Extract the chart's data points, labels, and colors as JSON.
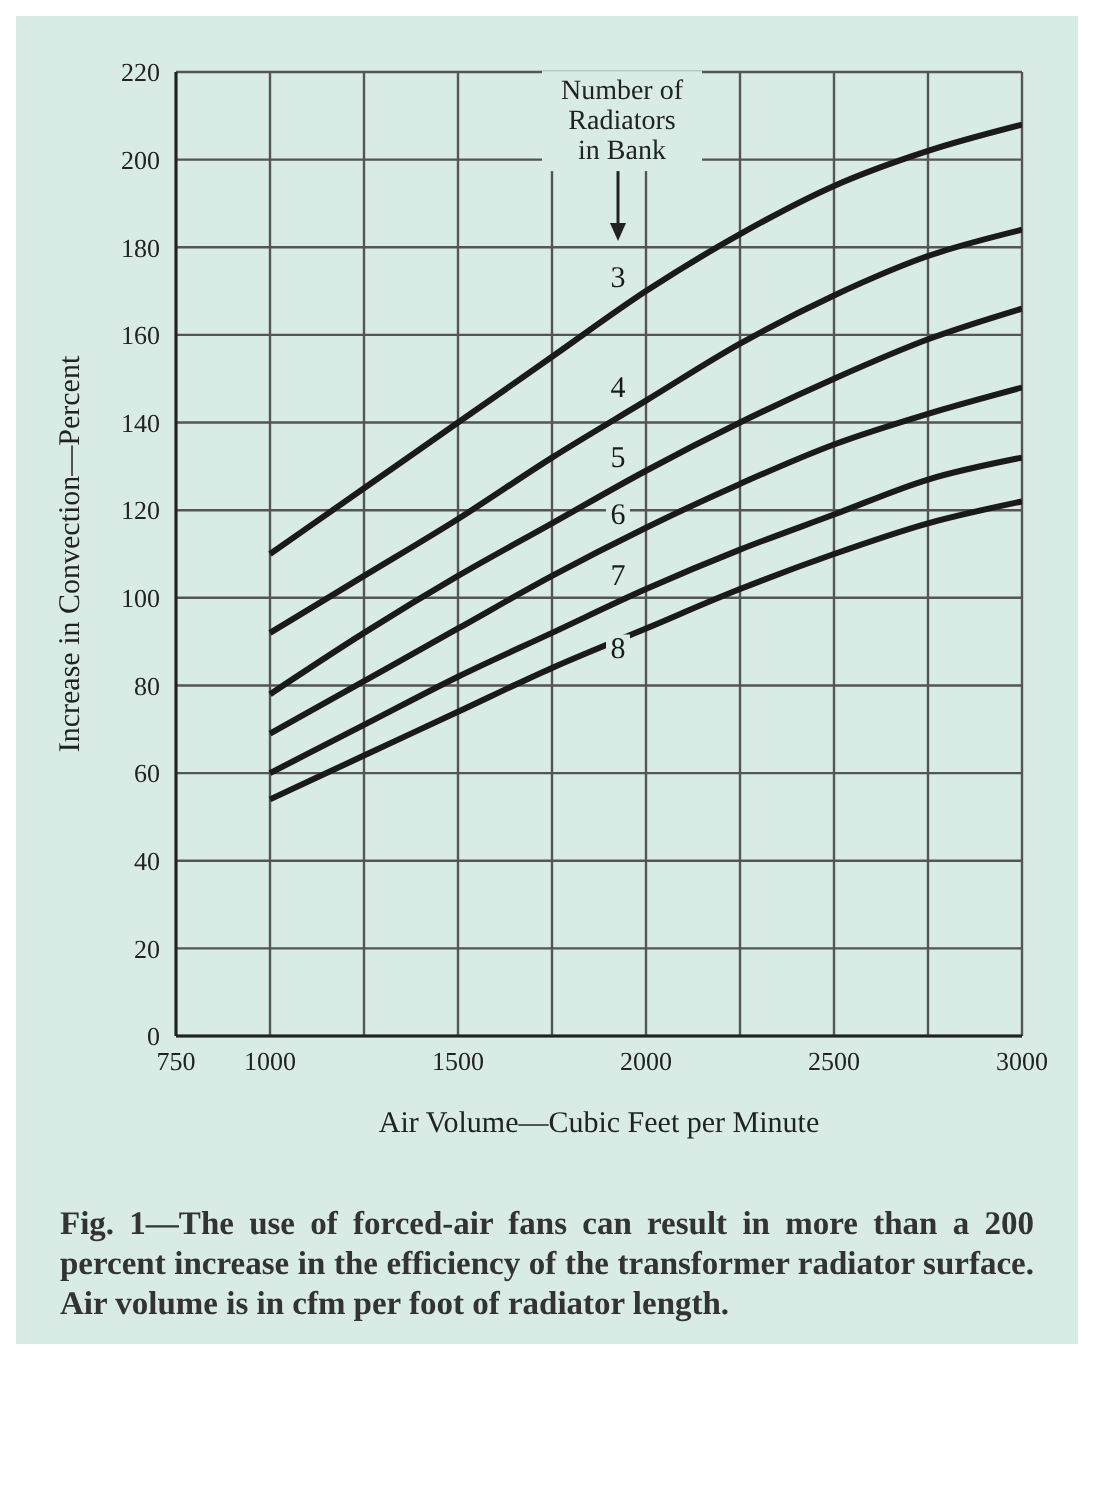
{
  "chart_data": {
    "type": "line",
    "xlabel": "Air Volume—Cubic Feet per Minute",
    "ylabel": "Increase in Convection—Percent",
    "legend_title": "Number of Radiators in Bank",
    "annotations": [
      "Fig. 1—The use of forced-air fans can result in more than a 200 percent increase in the efficiency of the transformer radiator surface. Air volume is in cfm per foot of radiator length."
    ],
    "x": [
      1000,
      1250,
      1500,
      1750,
      2000,
      2250,
      2500,
      2750,
      3000
    ],
    "series": [
      {
        "name": "3",
        "color": "#1a1a1a",
        "values": [
          110,
          125,
          140,
          155,
          170,
          183,
          194,
          202,
          208
        ]
      },
      {
        "name": "4",
        "color": "#1a1a1a",
        "values": [
          92,
          105,
          118,
          132,
          145,
          158,
          169,
          178,
          184
        ]
      },
      {
        "name": "5",
        "color": "#1a1a1a",
        "values": [
          78,
          92,
          105,
          117,
          129,
          140,
          150,
          159,
          166
        ]
      },
      {
        "name": "6",
        "color": "#1a1a1a",
        "values": [
          69,
          81,
          93,
          105,
          116,
          126,
          135,
          142,
          148
        ]
      },
      {
        "name": "7",
        "color": "#1a1a1a",
        "values": [
          60,
          71,
          82,
          92,
          102,
          111,
          119,
          127,
          132
        ]
      },
      {
        "name": "8",
        "color": "#1a1a1a",
        "values": [
          54,
          64,
          74,
          84,
          93,
          102,
          110,
          117,
          122
        ]
      }
    ],
    "xlim": [
      750,
      3000
    ],
    "ylim": [
      0,
      220
    ],
    "xticks": [
      750,
      1000,
      {
        "value": 1250,
        "label": null
      },
      1500,
      {
        "value": 1750,
        "label": null
      },
      2000,
      {
        "value": 2250,
        "label": null
      },
      2500,
      {
        "value": 2750,
        "label": null
      },
      3000
    ],
    "yticks": [
      0,
      20,
      40,
      60,
      80,
      100,
      120,
      140,
      160,
      180,
      200,
      220
    ],
    "grid": true,
    "legend": "top",
    "marker": "none",
    "line_style": "solid"
  }
}
